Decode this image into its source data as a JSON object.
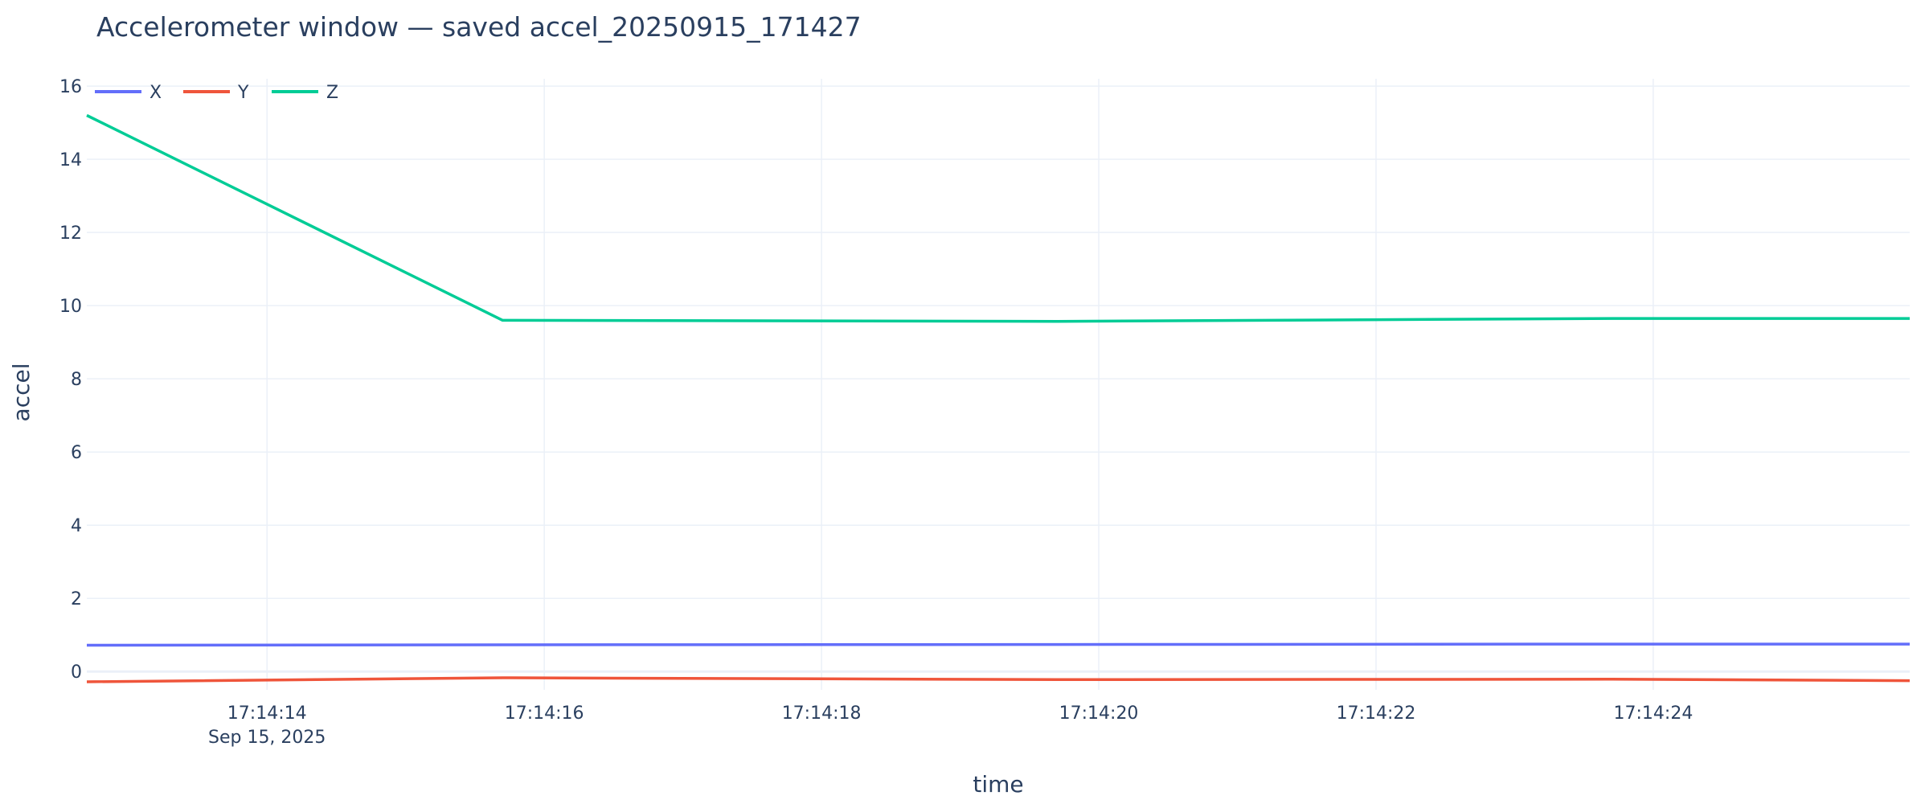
{
  "chart_data": {
    "type": "line",
    "title": "Accelerometer window — saved accel_20250915_171427",
    "xlabel": "time",
    "ylabel": "accel",
    "x_type": "time",
    "x": [
      "17:14:12.70",
      "17:14:15.70",
      "17:14:19.70",
      "17:14:23.70",
      "17:14:25.85"
    ],
    "xlim": [
      "17:14:12.70",
      "17:14:25.85"
    ],
    "x_ticks": [
      "17:14:14",
      "17:14:16",
      "17:14:18",
      "17:14:20",
      "17:14:22",
      "17:14:24"
    ],
    "x_date_label": "Sep 15, 2025",
    "ylim": [
      -0.5,
      16.2
    ],
    "y_ticks": [
      0,
      2,
      4,
      6,
      8,
      10,
      12,
      14,
      16
    ],
    "grid": true,
    "legend_position": "top-left",
    "series": [
      {
        "name": "X",
        "color": "#636efa",
        "values": [
          0.72,
          0.73,
          0.74,
          0.75,
          0.75
        ]
      },
      {
        "name": "Y",
        "color": "#ef553b",
        "values": [
          -0.28,
          -0.17,
          -0.22,
          -0.21,
          -0.25
        ]
      },
      {
        "name": "Z",
        "color": "#00cc96",
        "values": [
          15.2,
          9.6,
          9.57,
          9.65,
          9.65
        ]
      }
    ]
  }
}
